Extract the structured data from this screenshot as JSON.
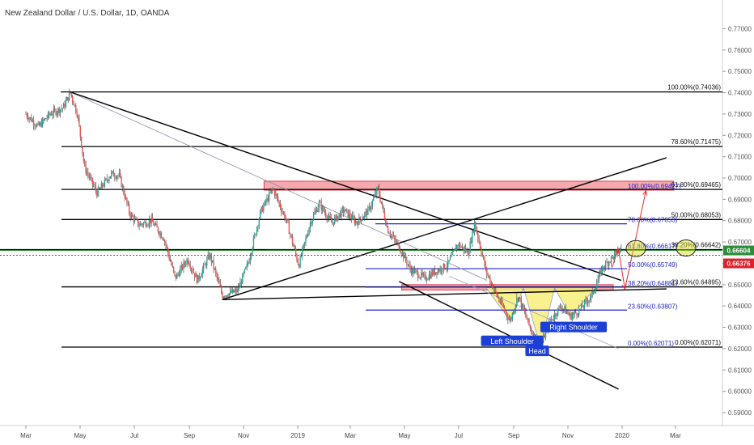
{
  "header": {
    "title": "New Zealand Dollar / U.S. Dollar, 1D, OANDA"
  },
  "colors": {
    "up": "#26a69a",
    "down": "#ef5350",
    "candle": "#3a3a3a",
    "fib_black": "#000000",
    "fib_blue": "#1e22c8",
    "zone_fill": "#f28b93",
    "pattern_fill": "#f7ef7a",
    "price_green": "#2e8b3a",
    "price_red": "#e0202a",
    "marker": "#d7dd1a"
  },
  "chart_data": {
    "type": "candlestick",
    "symbol": "NZDUSD",
    "ylim": [
      0.585,
      0.778
    ],
    "y_ticks": [
      "0.77000",
      "0.76000",
      "0.75000",
      "0.74000",
      "0.73000",
      "0.72000",
      "0.71000",
      "0.70000",
      "0.69000",
      "0.68000",
      "0.67000",
      "0.66000",
      "0.65000",
      "0.64000",
      "0.63000",
      "0.62000",
      "0.61000",
      "0.60000",
      "0.59000"
    ],
    "x_ticks": [
      "Mar",
      "May",
      "Jul",
      "Sep",
      "Nov",
      "2019",
      "Mar",
      "May",
      "Jul",
      "Sep",
      "Nov",
      "2020",
      "Mar"
    ],
    "current_prices": {
      "green": "0.66604",
      "red": "0.66376",
      "green_value": 0.66604,
      "red_value": 0.66376
    },
    "price_path": [
      [
        "2018-03-01",
        0.73
      ],
      [
        "2018-03-15",
        0.724
      ],
      [
        "2018-03-28",
        0.73
      ],
      [
        "2018-04-12",
        0.733
      ],
      [
        "2018-04-20",
        0.74
      ],
      [
        "2018-04-28",
        0.73
      ],
      [
        "2018-05-06",
        0.705
      ],
      [
        "2018-05-20",
        0.693
      ],
      [
        "2018-06-05",
        0.702
      ],
      [
        "2018-06-14",
        0.701
      ],
      [
        "2018-06-26",
        0.683
      ],
      [
        "2018-07-06",
        0.678
      ],
      [
        "2018-07-20",
        0.68
      ],
      [
        "2018-08-03",
        0.672
      ],
      [
        "2018-08-16",
        0.653
      ],
      [
        "2018-08-30",
        0.662
      ],
      [
        "2018-09-10",
        0.652
      ],
      [
        "2018-09-24",
        0.664
      ],
      [
        "2018-10-08",
        0.645
      ],
      [
        "2018-10-25",
        0.647
      ],
      [
        "2018-11-06",
        0.66
      ],
      [
        "2018-11-20",
        0.684
      ],
      [
        "2018-12-04",
        0.695
      ],
      [
        "2018-12-20",
        0.679
      ],
      [
        "2019-01-02",
        0.659
      ],
      [
        "2019-01-15",
        0.679
      ],
      [
        "2019-01-25",
        0.688
      ],
      [
        "2019-02-08",
        0.679
      ],
      [
        "2019-02-22",
        0.685
      ],
      [
        "2019-03-08",
        0.679
      ],
      [
        "2019-03-22",
        0.685
      ],
      [
        "2019-04-01",
        0.695
      ],
      [
        "2019-04-12",
        0.676
      ],
      [
        "2019-04-26",
        0.667
      ],
      [
        "2019-05-08",
        0.657
      ],
      [
        "2019-05-24",
        0.653
      ],
      [
        "2019-06-04",
        0.656
      ],
      [
        "2019-06-18",
        0.659
      ],
      [
        "2019-06-30",
        0.669
      ],
      [
        "2019-07-12",
        0.665
      ],
      [
        "2019-07-19",
        0.679
      ],
      [
        "2019-08-01",
        0.656
      ],
      [
        "2019-08-14",
        0.644
      ],
      [
        "2019-08-28",
        0.633
      ],
      [
        "2019-09-06",
        0.645
      ],
      [
        "2019-09-20",
        0.629
      ],
      [
        "2019-10-01",
        0.621
      ],
      [
        "2019-10-12",
        0.633
      ],
      [
        "2019-10-24",
        0.64
      ],
      [
        "2019-11-04",
        0.635
      ],
      [
        "2019-11-14",
        0.638
      ],
      [
        "2019-11-28",
        0.645
      ],
      [
        "2019-12-10",
        0.658
      ],
      [
        "2019-12-24",
        0.664
      ],
      [
        "2019-12-31",
        0.667
      ]
    ],
    "trend_lines": [
      {
        "from": [
          "2018-04-20",
          0.7403
        ],
        "to": [
          "2019-08-02",
          0.652
        ],
        "style": "thin-gray"
      },
      {
        "from": [
          "2018-04-20",
          0.7403
        ],
        "to": [
          "2019-12-31",
          0.652
        ],
        "style": "black"
      },
      {
        "from": [
          "2018-10-08",
          0.643
        ],
        "to": [
          "2020-02-20",
          0.7095
        ],
        "style": "black"
      },
      {
        "from": [
          "2018-10-08",
          0.643
        ],
        "to": [
          "2020-02-20",
          0.648
        ],
        "style": "black"
      },
      {
        "from": [
          "2019-04-25",
          0.6515
        ],
        "to": [
          "2019-12-28",
          0.601
        ],
        "style": "black"
      }
    ],
    "zones": [
      {
        "from": "2018-11-24",
        "to": "2020-02-28",
        "top": 0.6985,
        "bottom": 0.6943
      },
      {
        "from": "2019-04-28",
        "to": "2019-12-22",
        "top": 0.65,
        "bottom": 0.6475
      }
    ],
    "fib_retracement": [
      {
        "label": "100.00%(0.74036)",
        "value": 0.74036
      },
      {
        "label": "78.60%(0.71475)",
        "value": 0.71475
      },
      {
        "label": "61.80%(0.69465)",
        "value": 0.69465
      },
      {
        "label": "50.00%(0.68053)",
        "value": 0.68053
      },
      {
        "label": "38.20%(0.66642)",
        "value": 0.66642
      },
      {
        "label": "23.60%(0.64895)",
        "value": 0.64895
      },
      {
        "label": "0.00%(0.62071)",
        "value": 0.62071
      }
    ],
    "fib_extension": [
      {
        "label": "100.00%(0.69427)",
        "value": 0.69427
      },
      {
        "label": "78.60%(0.67853)",
        "value": 0.67853
      },
      {
        "label": "61.80%(0.66617)",
        "value": 0.66617
      },
      {
        "label": "50.00%(0.65749)",
        "value": 0.65749
      },
      {
        "label": "38.20%(0.64881)",
        "value": 0.64881
      },
      {
        "label": "23.60%(0.63807)",
        "value": 0.63807
      },
      {
        "label": "0.00%(0.62071)",
        "value": 0.62071
      }
    ],
    "pattern": {
      "name": "inverse head and shoulders",
      "left_shoulder": {
        "label": "Left Shoulder",
        "date": "2019-08-28",
        "value": 0.633
      },
      "head": {
        "label": "Head",
        "date": "2019-10-01",
        "value": 0.621
      },
      "right_shoulder": {
        "label": "Right Shoulder",
        "date": "2019-11-04",
        "value": 0.635
      },
      "neckline": 0.6485
    }
  }
}
